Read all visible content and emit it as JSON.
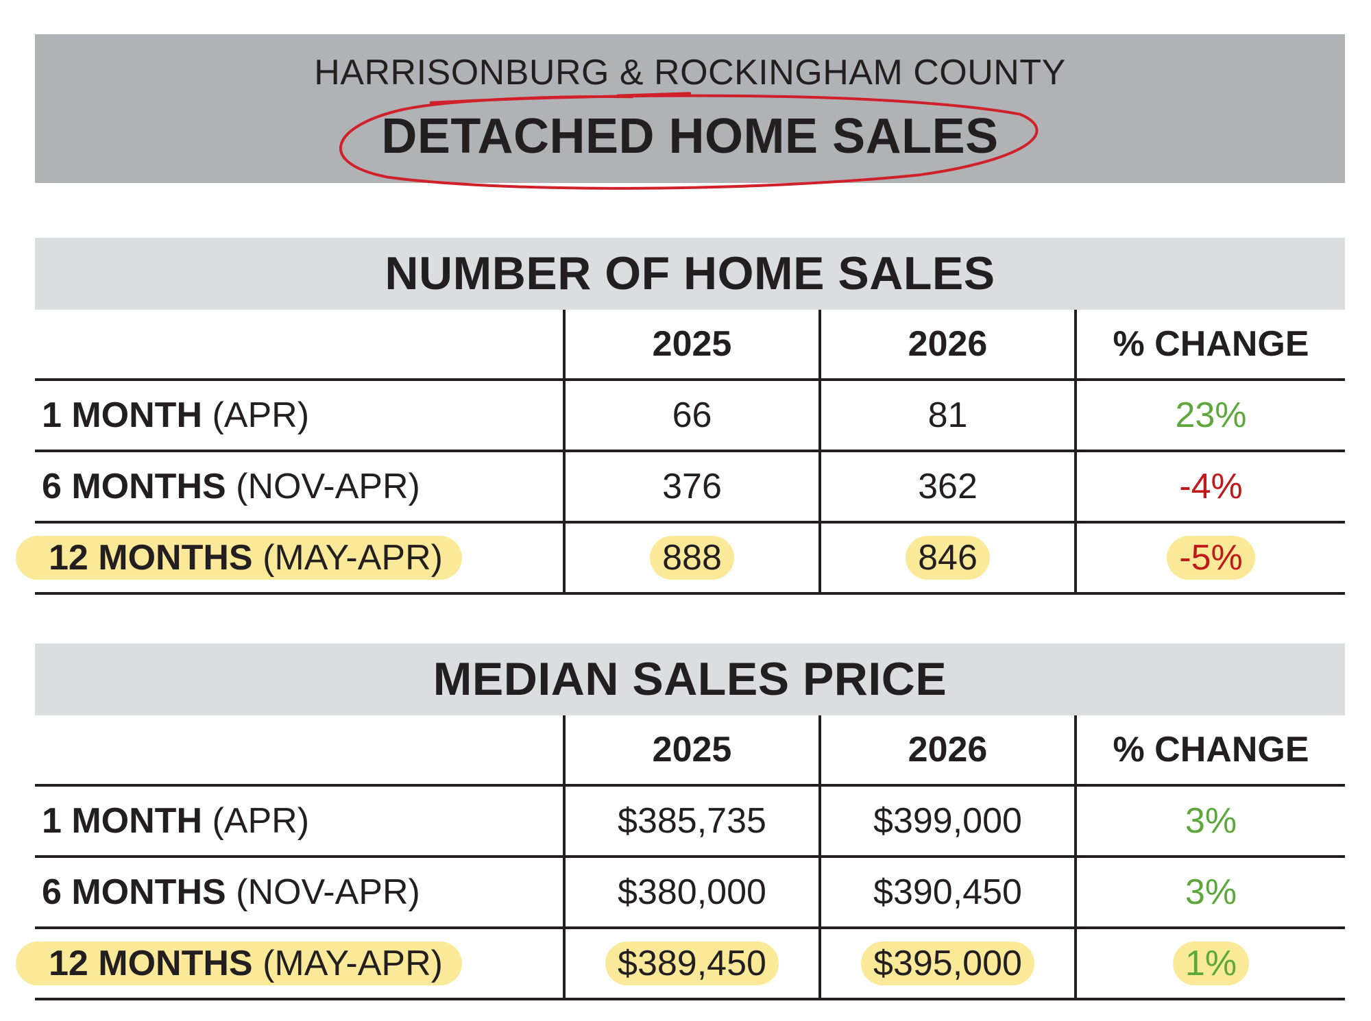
{
  "banner": {
    "subtitle": "HARRISONBURG & ROCKINGHAM COUNTY",
    "title": "DETACHED HOME SALES"
  },
  "colors": {
    "banner_bg": "#b1b2b5",
    "section_header_bg": "#dcdddf",
    "positive": "#5ea73d",
    "negative": "#c0191a",
    "highlight": "#f9e27c",
    "circle": "#d0212a"
  },
  "sales": {
    "title": "NUMBER OF HOME SALES",
    "headers": [
      "",
      "2025",
      "2026",
      "% CHANGE"
    ],
    "rows": [
      {
        "label_main": "1 MONTH",
        "label_sub": "(APR)",
        "v2025": "66",
        "v2026": "81",
        "change": "23%",
        "trend": "pos",
        "highlighted": false
      },
      {
        "label_main": "6 MONTHS",
        "label_sub": "(NOV-APR)",
        "v2025": "376",
        "v2026": "362",
        "change": "-4%",
        "trend": "neg",
        "highlighted": false
      },
      {
        "label_main": "12 MONTHS",
        "label_sub": "(MAY-APR)",
        "v2025": "888",
        "v2026": "846",
        "change": "-5%",
        "trend": "neg",
        "highlighted": true
      }
    ]
  },
  "price": {
    "title": "MEDIAN SALES PRICE",
    "headers": [
      "",
      "2025",
      "2026",
      "% CHANGE"
    ],
    "rows": [
      {
        "label_main": "1 MONTH",
        "label_sub": "(APR)",
        "v2025": "$385,735",
        "v2026": "$399,000",
        "change": "3%",
        "trend": "pos",
        "highlighted": false
      },
      {
        "label_main": "6 MONTHS",
        "label_sub": "(NOV-APR)",
        "v2025": "$380,000",
        "v2026": "$390,450",
        "change": "3%",
        "trend": "pos",
        "highlighted": false
      },
      {
        "label_main": "12 MONTHS",
        "label_sub": "(MAY-APR)",
        "v2025": "$389,450",
        "v2026": "$395,000",
        "change": "1%",
        "trend": "pos",
        "highlighted": true
      }
    ]
  }
}
